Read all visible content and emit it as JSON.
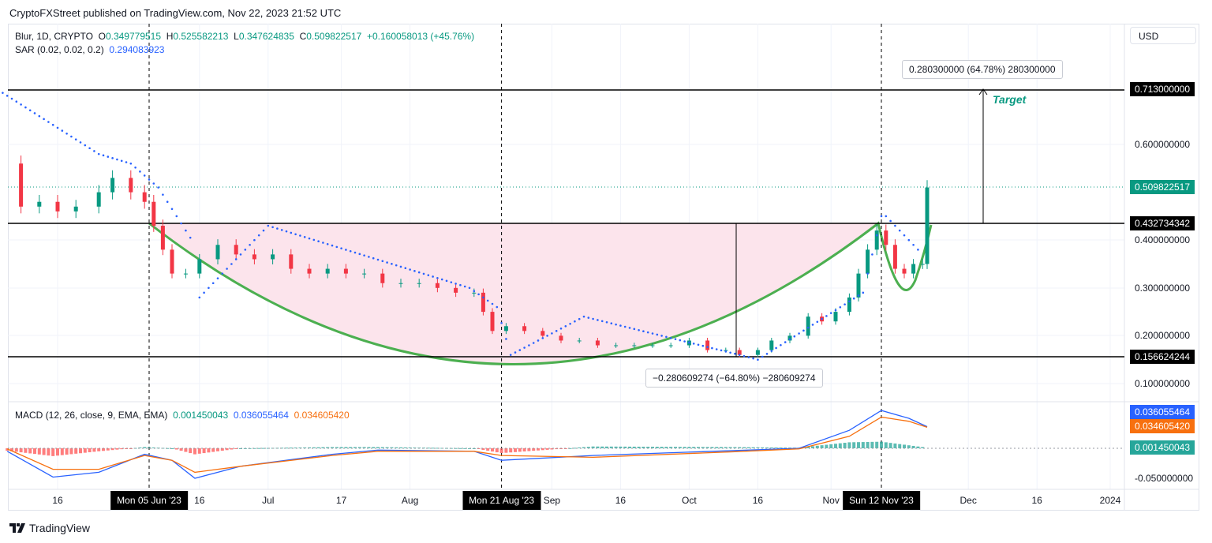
{
  "header": {
    "published": "CryptoFXStreet published on TradingView.com, Nov 22, 2023 21:52 UTC"
  },
  "legend": {
    "symbol": "Blur, 1D, CRYPTO",
    "o_label": "O",
    "o": "0.349779515",
    "h_label": "H",
    "h": "0.525582213",
    "l_label": "L",
    "l": "0.347624835",
    "c_label": "C",
    "c": "0.509822517",
    "change": "+0.160058013 (+45.76%)",
    "sar_label": "SAR (0.02, 0.02, 0.2)",
    "sar": "0.294083923",
    "macd_label": "MACD (12, 26, close, 9, EMA, EMA)",
    "macd_hist": "0.001450043",
    "macd": "0.036055464",
    "macd_signal": "0.034605420"
  },
  "currency": "USD",
  "price_ticks": [
    "0.600000000",
    "0.400000000",
    "0.300000000",
    "0.200000000",
    "0.100000000"
  ],
  "macd_ticks": [
    "-0.050000000"
  ],
  "price_labels": {
    "target": "0.713000000",
    "last": "0.509822517",
    "neckline": "0.432734342",
    "bottom": "0.156624244",
    "macd": "0.036055464",
    "signal": "0.034605420",
    "hist": "0.001450043"
  },
  "annotations": {
    "target_text": "Target",
    "up_measure": "0.280300000 (64.78%) 280300000",
    "down_measure": "−0.280609274 (−64.80%) −280609274"
  },
  "time_ticks": [
    {
      "l": "16",
      "d": "2023-05-16"
    },
    {
      "l": "16",
      "d": "2023-06-16"
    },
    {
      "l": "Jul",
      "d": "2023-07-01"
    },
    {
      "l": "17",
      "d": "2023-07-17"
    },
    {
      "l": "Aug",
      "d": "2023-08-01"
    },
    {
      "l": "Sep",
      "d": "2023-09-01"
    },
    {
      "l": "16",
      "d": "2023-09-16"
    },
    {
      "l": "Oct",
      "d": "2023-10-01"
    },
    {
      "l": "16",
      "d": "2023-10-16"
    },
    {
      "l": "Nov",
      "d": "2023-11-01"
    },
    {
      "l": "Dec",
      "d": "2023-12-01"
    },
    {
      "l": "16",
      "d": "2023-12-16"
    },
    {
      "l": "2024",
      "d": "2024-01-01"
    }
  ],
  "time_markers": [
    {
      "l": "Mon 05 Jun '23",
      "d": "2023-06-05"
    },
    {
      "l": "Mon 21 Aug '23",
      "d": "2023-08-21"
    },
    {
      "l": "Sun 12 Nov '23",
      "d": "2023-11-12"
    }
  ],
  "brand": "TradingView",
  "colors": {
    "up": "#089981",
    "down": "#f23645",
    "sar": "#2962ff",
    "macd": "#2962ff",
    "signal": "#f7700f",
    "cup": "#4caf50",
    "fill": "#fce4ec"
  },
  "chart_data": {
    "type": "candlestick",
    "ylim": [
      0.05,
      0.78
    ],
    "grid": true,
    "x": [
      "2023-05-05",
      "2023-05-08",
      "2023-05-12",
      "2023-05-16",
      "2023-05-20",
      "2023-05-25",
      "2023-05-28",
      "2023-06-01",
      "2023-06-04",
      "2023-06-06",
      "2023-06-08",
      "2023-06-10",
      "2023-06-13",
      "2023-06-16",
      "2023-06-20",
      "2023-06-24",
      "2023-06-28",
      "2023-07-02",
      "2023-07-06",
      "2023-07-10",
      "2023-07-14",
      "2023-07-18",
      "2023-07-22",
      "2023-07-26",
      "2023-07-30",
      "2023-08-03",
      "2023-08-07",
      "2023-08-11",
      "2023-08-15",
      "2023-08-17",
      "2023-08-19",
      "2023-08-22",
      "2023-08-26",
      "2023-08-30",
      "2023-09-03",
      "2023-09-07",
      "2023-09-11",
      "2023-09-15",
      "2023-09-19",
      "2023-09-23",
      "2023-09-27",
      "2023-10-01",
      "2023-10-05",
      "2023-10-09",
      "2023-10-12",
      "2023-10-16",
      "2023-10-19",
      "2023-10-23",
      "2023-10-27",
      "2023-10-30",
      "2023-11-02",
      "2023-11-05",
      "2023-11-07",
      "2023-11-09",
      "2023-11-11",
      "2023-11-13",
      "2023-11-15",
      "2023-11-17",
      "2023-11-19",
      "2023-11-21",
      "2023-11-22"
    ],
    "close": [
      0.56,
      0.47,
      0.48,
      0.46,
      0.47,
      0.5,
      0.53,
      0.5,
      0.48,
      0.43,
      0.38,
      0.33,
      0.33,
      0.36,
      0.39,
      0.37,
      0.36,
      0.37,
      0.34,
      0.33,
      0.34,
      0.33,
      0.33,
      0.31,
      0.31,
      0.31,
      0.3,
      0.29,
      0.29,
      0.25,
      0.21,
      0.22,
      0.21,
      0.2,
      0.19,
      0.19,
      0.18,
      0.18,
      0.18,
      0.18,
      0.18,
      0.19,
      0.17,
      0.17,
      0.16,
      0.17,
      0.19,
      0.2,
      0.24,
      0.23,
      0.25,
      0.28,
      0.33,
      0.38,
      0.42,
      0.39,
      0.34,
      0.33,
      0.35,
      0.35,
      0.51
    ],
    "sar": {
      "x": [
        "2023-05-02",
        "2023-05-25",
        "2023-06-01",
        "2023-06-07",
        "2023-06-15",
        "2023-06-16",
        "2023-07-01",
        "2023-08-14",
        "2023-08-20",
        "2023-08-23",
        "2023-09-08",
        "2023-10-12",
        "2023-10-16",
        "2023-11-08",
        "2023-11-12",
        "2023-11-13",
        "2023-11-21",
        "2023-11-22"
      ],
      "y": [
        0.72,
        0.58,
        0.56,
        0.51,
        0.39,
        0.28,
        0.43,
        0.3,
        0.26,
        0.16,
        0.24,
        0.16,
        0.15,
        0.29,
        0.45,
        0.45,
        0.37,
        0.29
      ]
    },
    "macd": {
      "x": [
        "2023-05-05",
        "2023-05-15",
        "2023-05-25",
        "2023-06-04",
        "2023-06-10",
        "2023-06-15",
        "2023-06-25",
        "2023-07-15",
        "2023-07-25",
        "2023-08-15",
        "2023-08-21",
        "2023-09-10",
        "2023-10-10",
        "2023-10-25",
        "2023-11-05",
        "2023-11-12",
        "2023-11-18",
        "2023-11-22"
      ],
      "line": [
        -0.005,
        -0.048,
        -0.04,
        -0.01,
        -0.02,
        -0.05,
        -0.03,
        -0.01,
        -0.003,
        -0.005,
        -0.02,
        -0.012,
        -0.004,
        0.0,
        0.03,
        0.063,
        0.05,
        0.036
      ],
      "signal": [
        -0.001,
        -0.035,
        -0.035,
        -0.012,
        -0.02,
        -0.04,
        -0.03,
        -0.012,
        -0.005,
        -0.005,
        -0.012,
        -0.015,
        -0.006,
        -0.001,
        0.02,
        0.052,
        0.045,
        0.035
      ]
    }
  }
}
